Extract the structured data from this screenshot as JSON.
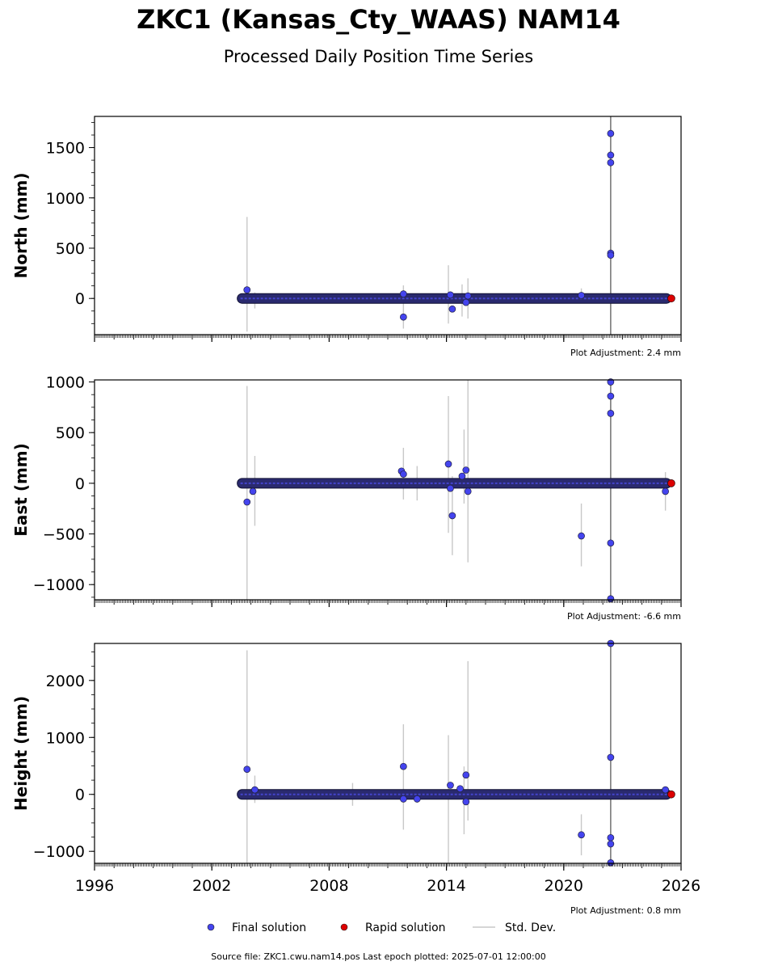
{
  "page": {
    "title": "ZKC1 (Kansas_Cty_WAAS) NAM14",
    "subtitle": "Processed Daily Position Time Series",
    "source": "Source file: ZKC1.cwu.nam14.pos  Last epoch plotted: 2025-07-01 12:00:00"
  },
  "legend": {
    "final_label": "Final solution",
    "rapid_label": "Rapid solution",
    "std_label": "Std. Dev.",
    "final_color": "#4444ee",
    "rapid_color": "#dd0000",
    "std_color": "#c8c8c8"
  },
  "chart_data": [
    {
      "type": "scatter",
      "ylabel": "North (mm)",
      "adjustment": "Plot Adjustment: 2.4 mm",
      "xlim": [
        1996,
        2026
      ],
      "ylim": [
        -360,
        1810
      ],
      "xticks": [
        1996,
        2002,
        2008,
        2014,
        2020,
        2026
      ],
      "xtick_labels": [
        "1996",
        "2002",
        "2008",
        "2014",
        "2020",
        "2026"
      ],
      "yticks": [
        0,
        500,
        1000,
        1500
      ],
      "ytick_labels": [
        "0",
        "500",
        "1000",
        "1500"
      ],
      "data_span": [
        2003.3,
        2025.5
      ],
      "final_points": [
        [
          2003.8,
          85
        ],
        [
          2011.8,
          45
        ],
        [
          2011.8,
          -185
        ],
        [
          2014.2,
          35
        ],
        [
          2014.3,
          -105
        ],
        [
          2015.1,
          25
        ],
        [
          2015.0,
          -40
        ],
        [
          2020.9,
          30
        ],
        [
          2022.4,
          1640
        ],
        [
          2022.4,
          1425
        ],
        [
          2022.4,
          1350
        ],
        [
          2022.4,
          450
        ],
        [
          2022.4,
          430
        ]
      ],
      "rapid_points": [
        [
          2025.5,
          0
        ]
      ],
      "error_bars": [
        [
          2003.8,
          -330,
          810
        ],
        [
          2004.2,
          -100,
          60
        ],
        [
          2011.8,
          -300,
          130
        ],
        [
          2014.1,
          -250,
          330
        ],
        [
          2014.8,
          -180,
          140
        ],
        [
          2015.1,
          -200,
          200
        ],
        [
          2020.9,
          -30,
          100
        ],
        [
          2022.4,
          -360,
          1810
        ]
      ]
    },
    {
      "type": "scatter",
      "ylabel": "East (mm)",
      "adjustment": "Plot Adjustment: -6.6 mm",
      "xlim": [
        1996,
        2026
      ],
      "ylim": [
        -1150,
        1020
      ],
      "xticks": [
        1996,
        2002,
        2008,
        2014,
        2020,
        2026
      ],
      "xtick_labels": [
        "1996",
        "2002",
        "2008",
        "2014",
        "2020",
        "2026"
      ],
      "yticks": [
        -1000,
        -500,
        0,
        500,
        1000
      ],
      "ytick_labels": [
        "−1000",
        "−500",
        "0",
        "500",
        "1000"
      ],
      "data_span": [
        2003.3,
        2025.5
      ],
      "final_points": [
        [
          2003.8,
          -185
        ],
        [
          2004.1,
          -80
        ],
        [
          2011.7,
          120
        ],
        [
          2011.8,
          90
        ],
        [
          2014.1,
          190
        ],
        [
          2014.2,
          -50
        ],
        [
          2014.3,
          -320
        ],
        [
          2014.8,
          70
        ],
        [
          2015.0,
          130
        ],
        [
          2015.1,
          -80
        ],
        [
          2020.9,
          -520
        ],
        [
          2022.4,
          1000
        ],
        [
          2022.4,
          860
        ],
        [
          2022.4,
          690
        ],
        [
          2022.4,
          -590
        ],
        [
          2022.4,
          -1140
        ],
        [
          2025.2,
          -80
        ]
      ],
      "rapid_points": [
        [
          2025.5,
          0
        ]
      ],
      "error_bars": [
        [
          2003.8,
          -1150,
          960
        ],
        [
          2004.2,
          -420,
          270
        ],
        [
          2011.8,
          -160,
          350
        ],
        [
          2012.5,
          -170,
          170
        ],
        [
          2014.1,
          -490,
          860
        ],
        [
          2014.3,
          -710,
          70
        ],
        [
          2014.9,
          -200,
          530
        ],
        [
          2015.1,
          -780,
          1020
        ],
        [
          2020.9,
          -820,
          -200
        ],
        [
          2022.4,
          -1150,
          1020
        ],
        [
          2025.2,
          -270,
          110
        ]
      ]
    },
    {
      "type": "scatter",
      "ylabel": "Height (mm)",
      "adjustment": "Plot Adjustment: 0.8 mm",
      "xlim": [
        1996,
        2026
      ],
      "ylim": [
        -1210,
        2650
      ],
      "xticks": [
        1996,
        2002,
        2008,
        2014,
        2020,
        2026
      ],
      "xtick_labels": [
        "1996",
        "2002",
        "2008",
        "2014",
        "2020",
        "2026"
      ],
      "yticks": [
        -1000,
        0,
        1000,
        2000
      ],
      "ytick_labels": [
        "−1000",
        "0",
        "1000",
        "2000"
      ],
      "data_span": [
        2003.3,
        2025.5
      ],
      "final_points": [
        [
          2003.8,
          440
        ],
        [
          2004.2,
          80
        ],
        [
          2011.8,
          490
        ],
        [
          2011.8,
          -80
        ],
        [
          2012.5,
          -80
        ],
        [
          2014.2,
          160
        ],
        [
          2014.7,
          100
        ],
        [
          2015.0,
          340
        ],
        [
          2015.0,
          -130
        ],
        [
          2020.9,
          -710
        ],
        [
          2022.4,
          2650
        ],
        [
          2022.4,
          650
        ],
        [
          2022.4,
          -760
        ],
        [
          2022.4,
          -870
        ],
        [
          2022.4,
          -1200
        ],
        [
          2025.2,
          80
        ]
      ],
      "rapid_points": [
        [
          2025.5,
          0
        ]
      ],
      "error_bars": [
        [
          2003.8,
          -1200,
          2530
        ],
        [
          2004.2,
          -150,
          330
        ],
        [
          2009.2,
          -200,
          200
        ],
        [
          2011.8,
          -620,
          1230
        ],
        [
          2012.5,
          -150,
          80
        ],
        [
          2014.1,
          -1200,
          1040
        ],
        [
          2014.9,
          -700,
          490
        ],
        [
          2015.1,
          -460,
          2340
        ],
        [
          2020.9,
          -1070,
          -350
        ],
        [
          2022.4,
          -1210,
          2650
        ]
      ]
    }
  ]
}
